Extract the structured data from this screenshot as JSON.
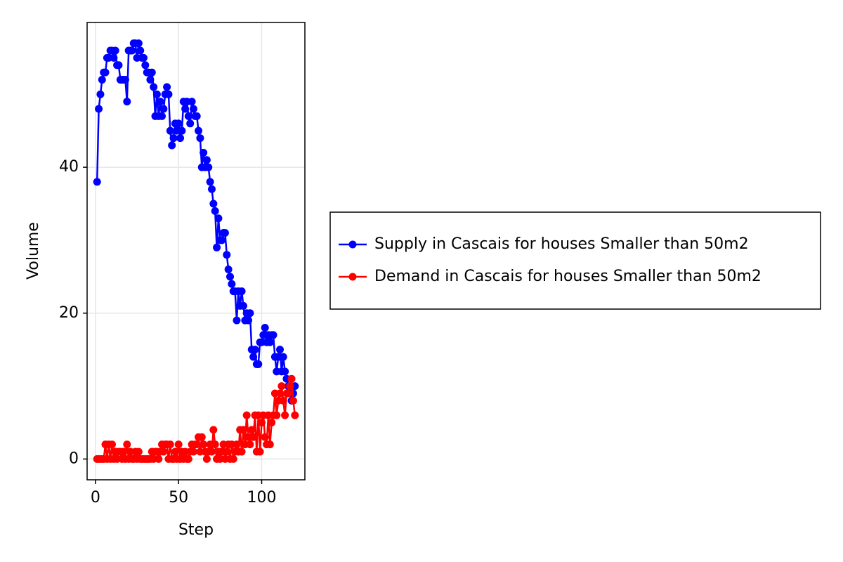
{
  "chart_data": {
    "type": "line",
    "x_label": "Step",
    "y_label": "Volume",
    "x": [
      1,
      2,
      3,
      4,
      5,
      6,
      7,
      8,
      9,
      10,
      11,
      12,
      13,
      14,
      15,
      16,
      17,
      18,
      19,
      20,
      21,
      22,
      23,
      24,
      25,
      26,
      27,
      28,
      29,
      30,
      31,
      32,
      33,
      34,
      35,
      36,
      37,
      38,
      39,
      40,
      41,
      42,
      43,
      44,
      45,
      46,
      47,
      48,
      49,
      50,
      51,
      52,
      53,
      54,
      55,
      56,
      57,
      58,
      59,
      60,
      61,
      62,
      63,
      64,
      65,
      66,
      67,
      68,
      69,
      70,
      71,
      72,
      73,
      74,
      75,
      76,
      77,
      78,
      79,
      80,
      81,
      82,
      83,
      84,
      85,
      86,
      87,
      88,
      89,
      90,
      91,
      92,
      93,
      94,
      95,
      96,
      97,
      98,
      99,
      100,
      101,
      102,
      103,
      104,
      105,
      106,
      107,
      108,
      109,
      110,
      111,
      112,
      113,
      114,
      115,
      116,
      117,
      118,
      119,
      120
    ],
    "series": [
      {
        "name": "Supply in Cascais for houses Smaller than 50m2",
        "color": "#0000ff",
        "values": [
          38,
          48,
          50,
          52,
          53,
          53,
          55,
          55,
          56,
          56,
          55,
          56,
          54,
          54,
          52,
          52,
          52,
          52,
          49,
          56,
          56,
          56,
          57,
          57,
          55,
          57,
          56,
          55,
          55,
          54,
          53,
          53,
          52,
          53,
          51,
          47,
          50,
          47,
          49,
          47,
          48,
          50,
          51,
          50,
          45,
          43,
          44,
          46,
          45,
          46,
          44,
          45,
          49,
          48,
          49,
          47,
          46,
          49,
          48,
          47,
          47,
          45,
          44,
          40,
          42,
          40,
          41,
          40,
          38,
          37,
          35,
          34,
          29,
          33,
          30,
          30,
          31,
          31,
          28,
          26,
          25,
          24,
          23,
          23,
          19,
          23,
          21,
          23,
          21,
          19,
          20,
          19,
          20,
          15,
          14,
          15,
          13,
          13,
          16,
          16,
          17,
          18,
          16,
          17,
          16,
          17,
          17,
          14,
          12,
          14,
          15,
          12,
          14,
          12,
          11,
          10,
          10,
          8,
          9,
          10
        ]
      },
      {
        "name": "Demand in Cascais for houses Smaller than 50m2",
        "color": "#ff0000",
        "values": [
          0,
          0,
          0,
          0,
          0,
          2,
          0,
          2,
          0,
          2,
          0,
          1,
          0,
          1,
          1,
          0,
          1,
          0,
          2,
          0,
          1,
          0,
          0,
          1,
          0,
          1,
          0,
          0,
          0,
          0,
          0,
          0,
          0,
          1,
          0,
          1,
          1,
          0,
          1,
          2,
          1,
          2,
          2,
          0,
          2,
          0,
          0,
          1,
          0,
          2,
          0,
          1,
          0,
          1,
          0,
          0,
          1,
          2,
          1,
          2,
          2,
          3,
          1,
          3,
          2,
          1,
          0,
          1,
          2,
          1,
          4,
          2,
          0,
          1,
          0,
          1,
          2,
          0,
          1,
          2,
          0,
          2,
          0,
          1,
          2,
          1,
          4,
          1,
          4,
          2,
          6,
          3,
          2,
          4,
          3,
          6,
          1,
          6,
          1,
          5,
          6,
          3,
          2,
          6,
          2,
          5,
          6,
          9,
          6,
          8,
          9,
          10,
          8,
          6,
          9,
          9,
          10,
          11,
          8,
          6
        ]
      }
    ],
    "xlim": [
      -5,
      126
    ],
    "ylim": [
      -2.85,
      59.85
    ],
    "xticks": [
      0,
      50,
      100
    ],
    "yticks": [
      0,
      20,
      40
    ],
    "grid": true,
    "legend": "right"
  }
}
